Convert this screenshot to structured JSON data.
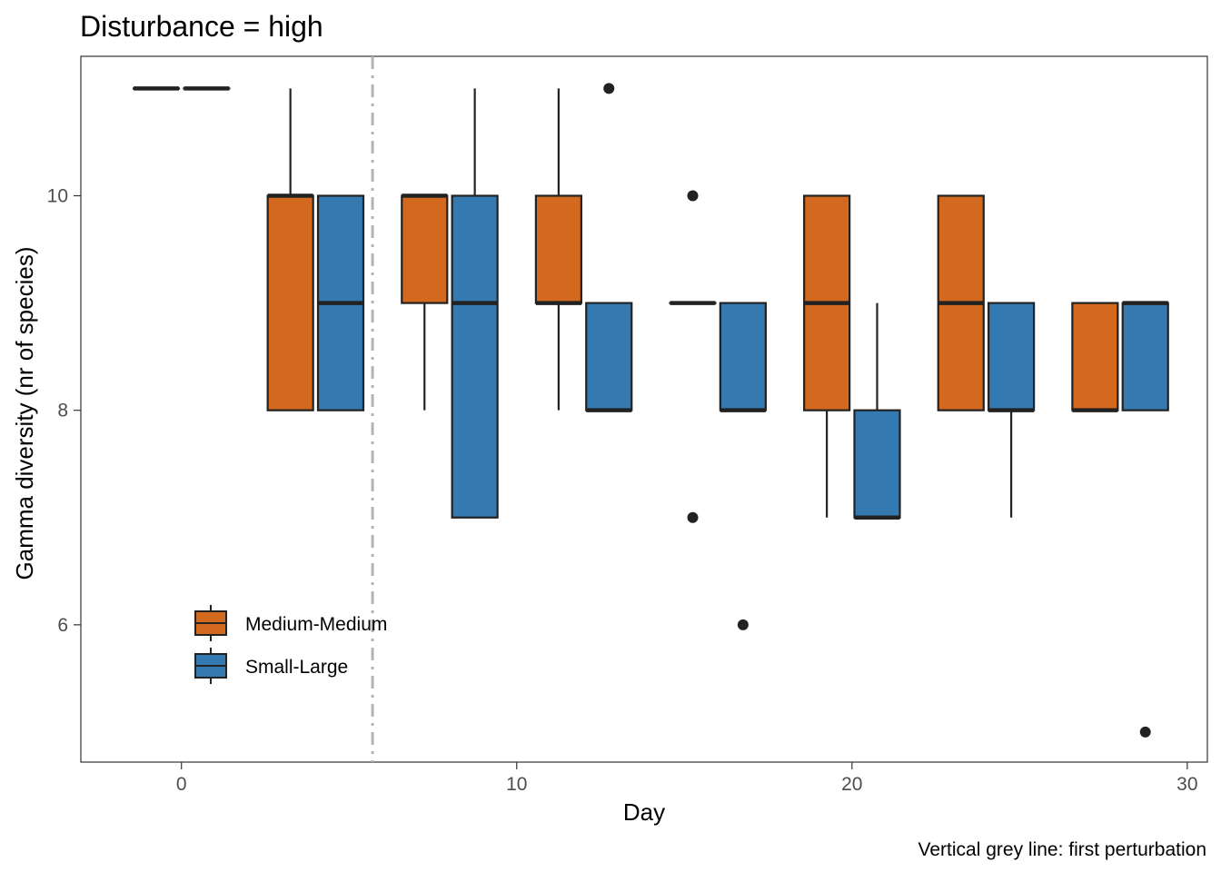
{
  "chart_data": {
    "type": "boxplot",
    "title": "Disturbance = high",
    "xlabel": "Day",
    "ylabel": "Gamma diversity (nr of species)",
    "caption": "Vertical grey line: first perturbation",
    "xlim": [
      -3,
      30.6
    ],
    "ylim": [
      4.72,
      11.3
    ],
    "x_ticks": [
      0,
      10,
      20,
      30
    ],
    "y_ticks": [
      6,
      8,
      10
    ],
    "grid": false,
    "legend_position": "bottom-left inside",
    "reference_line": {
      "x": 5.7,
      "style": "dashed-dot",
      "color": "#b3b3b3"
    },
    "series": [
      {
        "name": "Medium-Medium",
        "color": "#D2691E"
      },
      {
        "name": "Small-Large",
        "color": "#3579B1"
      }
    ],
    "boxes": [
      {
        "series": "Medium-Medium",
        "day": -0.75,
        "min": 11,
        "q1": 11,
        "median": 11,
        "q3": 11,
        "max": 11,
        "outliers": []
      },
      {
        "series": "Small-Large",
        "day": 0.75,
        "min": 11,
        "q1": 11,
        "median": 11,
        "q3": 11,
        "max": 11,
        "outliers": []
      },
      {
        "series": "Medium-Medium",
        "day": 3.25,
        "min": 8,
        "q1": 8,
        "median": 10,
        "q3": 10,
        "max": 11,
        "outliers": []
      },
      {
        "series": "Small-Large",
        "day": 4.75,
        "min": 8,
        "q1": 8,
        "median": 9,
        "q3": 10,
        "max": 10,
        "outliers": []
      },
      {
        "series": "Medium-Medium",
        "day": 7.25,
        "min": 8,
        "q1": 9,
        "median": 10,
        "q3": 10,
        "max": 10,
        "outliers": []
      },
      {
        "series": "Small-Large",
        "day": 8.75,
        "min": 7,
        "q1": 7,
        "median": 9,
        "q3": 10,
        "max": 11,
        "outliers": []
      },
      {
        "series": "Medium-Medium",
        "day": 11.25,
        "min": 8,
        "q1": 9,
        "median": 9,
        "q3": 10,
        "max": 11,
        "outliers": []
      },
      {
        "series": "Small-Large",
        "day": 12.75,
        "min": 8,
        "q1": 8,
        "median": 8,
        "q3": 9,
        "max": 9,
        "outliers": [
          11
        ]
      },
      {
        "series": "Medium-Medium",
        "day": 15.25,
        "min": 9,
        "q1": 9,
        "median": 9,
        "q3": 9,
        "max": 9,
        "outliers": [
          10,
          7
        ]
      },
      {
        "series": "Small-Large",
        "day": 16.75,
        "min": 8,
        "q1": 8,
        "median": 8,
        "q3": 9,
        "max": 9,
        "outliers": [
          6
        ]
      },
      {
        "series": "Medium-Medium",
        "day": 19.25,
        "min": 7,
        "q1": 8,
        "median": 9,
        "q3": 10,
        "max": 10,
        "outliers": []
      },
      {
        "series": "Small-Large",
        "day": 20.75,
        "min": 7,
        "q1": 7,
        "median": 7,
        "q3": 8,
        "max": 9,
        "outliers": []
      },
      {
        "series": "Medium-Medium",
        "day": 23.25,
        "min": 8,
        "q1": 8,
        "median": 9,
        "q3": 10,
        "max": 10,
        "outliers": []
      },
      {
        "series": "Small-Large",
        "day": 24.75,
        "min": 7,
        "q1": 8,
        "median": 8,
        "q3": 9,
        "max": 9,
        "outliers": []
      },
      {
        "series": "Medium-Medium",
        "day": 27.25,
        "min": 8,
        "q1": 8,
        "median": 8,
        "q3": 9,
        "max": 9,
        "outliers": []
      },
      {
        "series": "Small-Large",
        "day": 28.75,
        "min": 8,
        "q1": 8,
        "median": 9,
        "q3": 9,
        "max": 9,
        "outliers": [
          5
        ]
      }
    ]
  }
}
